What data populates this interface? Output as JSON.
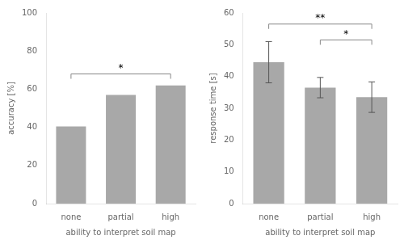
{
  "chart_data": [
    {
      "type": "bar",
      "categories": [
        "none",
        "partial",
        "high"
      ],
      "values": [
        40.5,
        57.0,
        62.0
      ],
      "color": "#a8a8a8",
      "ylabel": "accuracy [%]",
      "xlabel": "ability to interpret soil map",
      "ylim": [
        0,
        100
      ],
      "yticks": [
        0,
        20,
        40,
        60,
        80,
        100
      ],
      "grid": false,
      "annotations": [
        {
          "text": "*",
          "x1": "none",
          "x2": "high",
          "y": 68
        }
      ]
    },
    {
      "type": "bar",
      "categories": [
        "none",
        "partial",
        "high"
      ],
      "values": [
        44.5,
        36.5,
        33.5
      ],
      "errors": [
        6.5,
        3.2,
        4.8
      ],
      "color": "#a8a8a8",
      "ylabel": "response time [s]",
      "xlabel": "ability to interpret soil map",
      "ylim": [
        0,
        60
      ],
      "yticks": [
        0,
        10,
        20,
        30,
        40,
        50,
        60
      ],
      "grid": false,
      "annotations": [
        {
          "text": "**",
          "x1": "none",
          "x2": "high",
          "y": 56.5
        },
        {
          "text": "*",
          "x1": "partial",
          "x2": "high",
          "y": 51.5
        }
      ]
    }
  ]
}
